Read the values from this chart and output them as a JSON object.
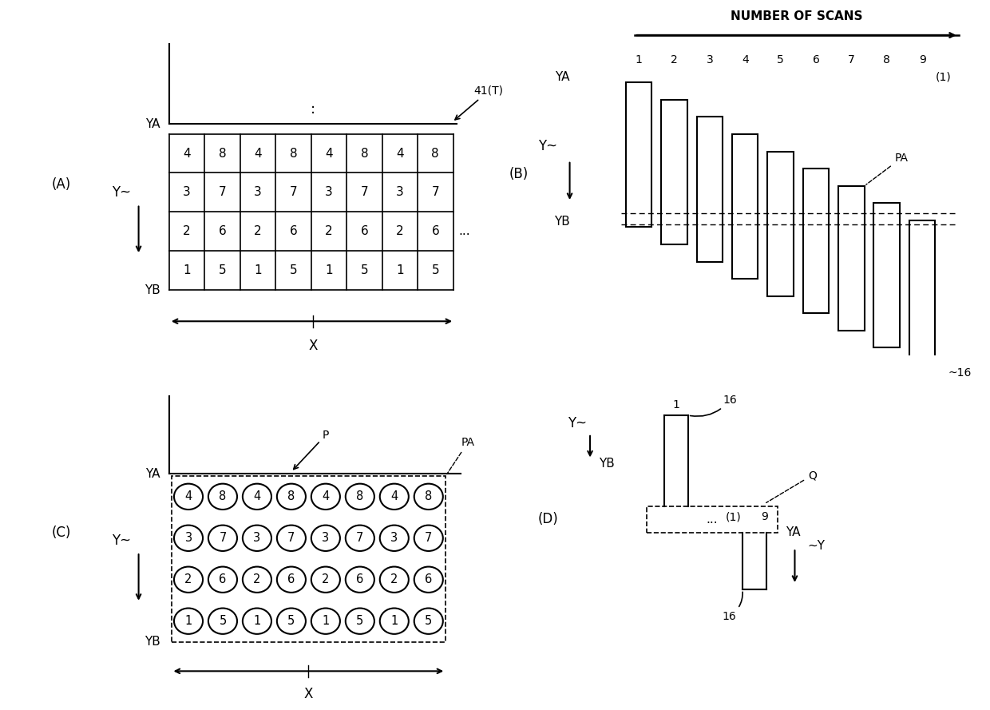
{
  "background_color": "#ffffff",
  "panel_A": {
    "label": "(A)",
    "grid_values": [
      [
        4,
        8,
        4,
        8,
        4,
        8,
        4,
        8
      ],
      [
        3,
        7,
        3,
        7,
        3,
        7,
        3,
        7
      ],
      [
        2,
        6,
        2,
        6,
        2,
        6,
        2,
        6
      ],
      [
        1,
        5,
        1,
        5,
        1,
        5,
        1,
        5
      ]
    ],
    "label_41T": "41(T)",
    "label_YA": "YA",
    "label_YB": "YB",
    "label_Y": "Y~",
    "label_X": "X"
  },
  "panel_B": {
    "label": "(B)",
    "title": "NUMBER OF SCANS",
    "scan_numbers": [
      "1",
      "2",
      "3",
      "4",
      "5",
      "6",
      "7",
      "8",
      "9"
    ],
    "note": "(1)",
    "label_YA": "YA",
    "label_YB": "YB",
    "label_Y": "Y~",
    "label_PA": "PA",
    "label_16": "16"
  },
  "panel_C": {
    "label": "(C)",
    "grid_values": [
      [
        4,
        8,
        4,
        8,
        4,
        8,
        4,
        8
      ],
      [
        3,
        7,
        3,
        7,
        3,
        7,
        3,
        7
      ],
      [
        2,
        6,
        2,
        6,
        2,
        6,
        2,
        6
      ],
      [
        1,
        5,
        1,
        5,
        1,
        5,
        1,
        5
      ]
    ],
    "label_P": "P",
    "label_PA": "PA",
    "label_YA": "YA",
    "label_YB": "YB",
    "label_Y": "Y~",
    "label_X": "X"
  },
  "panel_D": {
    "label": "(D)",
    "label_Y_top": "Y~",
    "label_YB": "YB",
    "label_YA": "YA",
    "label_Y_bottom": "~Y",
    "label_1": "1",
    "label_9": "9",
    "label_16_top": "16",
    "label_16_bottom": "16",
    "label_Q": "Q",
    "label_1_note": "(1)"
  },
  "line_color": "#000000",
  "font_size": 10
}
